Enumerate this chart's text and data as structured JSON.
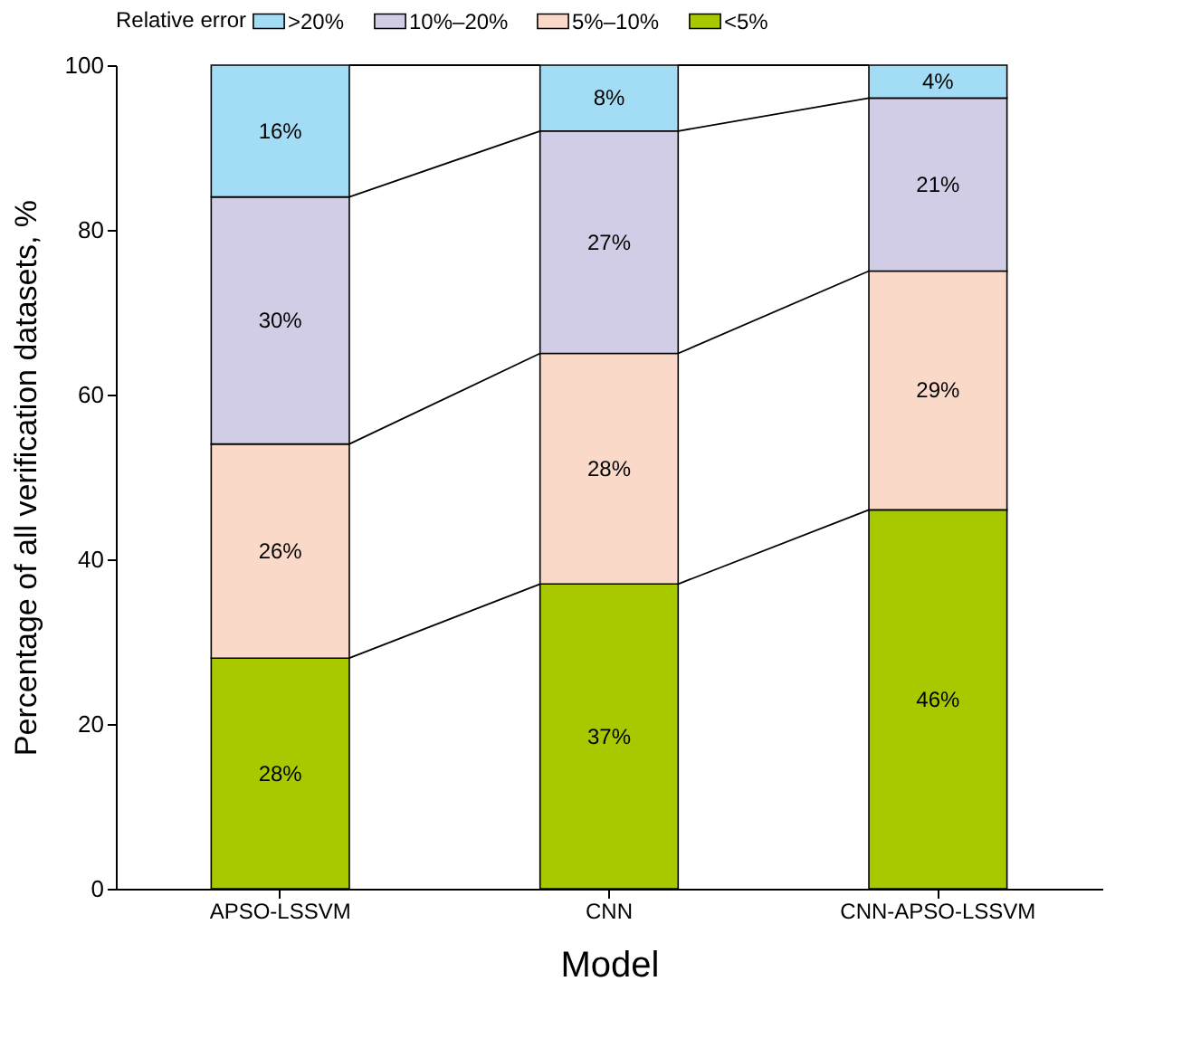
{
  "chart_data": {
    "type": "bar",
    "stacked": true,
    "xlabel": "Model",
    "ylabel": "Percentage of all verification datasets, %",
    "legend_title": "Relative error",
    "legend": "top",
    "grid": false,
    "categories": [
      "APSO-LSSVM",
      "CNN",
      "CNN-APSO-LSSVM"
    ],
    "ylim": [
      0,
      100
    ],
    "yticks": [
      0,
      20,
      40,
      60,
      80,
      100
    ],
    "series": [
      {
        "name": "<5%",
        "color": "#a8c800",
        "values": [
          28,
          37,
          46
        ],
        "value_labels": [
          "28%",
          "37%",
          "46%"
        ]
      },
      {
        "name": "5%–10%",
        "color": "#fad9c8",
        "values": [
          26,
          28,
          29
        ],
        "value_labels": [
          "26%",
          "28%",
          "29%"
        ]
      },
      {
        "name": "10%–20%",
        "color": "#d2cde6",
        "values": [
          30,
          27,
          21
        ],
        "value_labels": [
          "30%",
          "27%",
          "21%"
        ]
      },
      {
        "name": ">20%",
        "color": "#a3dcf5",
        "values": [
          16,
          8,
          4
        ],
        "value_labels": [
          "16%",
          "8%",
          "4%"
        ]
      }
    ]
  }
}
